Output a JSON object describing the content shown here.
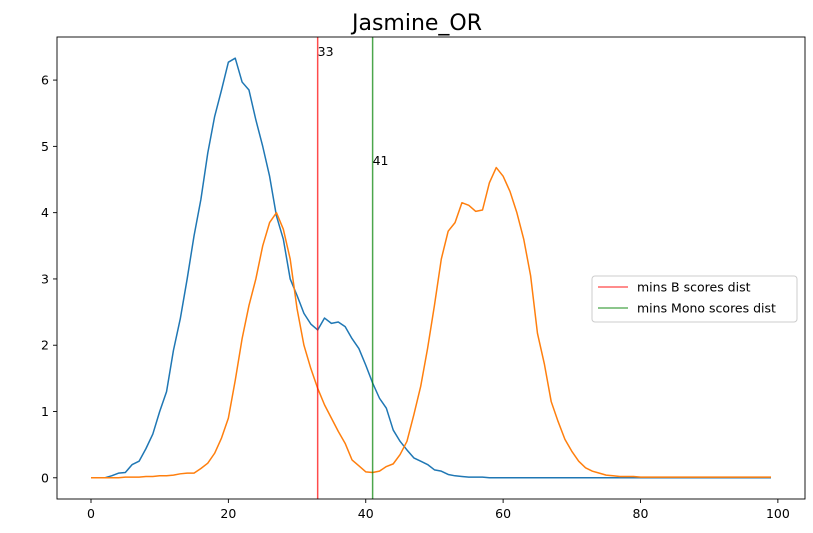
{
  "chart_data": {
    "type": "line",
    "title": "Jasmine_OR",
    "xlabel": "",
    "ylabel": "",
    "xlim": [
      -4.95,
      103.95
    ],
    "ylim": [
      -0.32,
      6.65
    ],
    "xticks": [
      0,
      20,
      40,
      60,
      80,
      100
    ],
    "yticks": [
      0,
      1,
      2,
      3,
      4,
      5,
      6
    ],
    "grid": false,
    "legend_position": "center-right",
    "series": [
      {
        "color": "#1f77b4",
        "x": [
          0,
          1,
          2,
          3,
          4,
          5,
          6,
          7,
          8,
          9,
          10,
          11,
          12,
          13,
          14,
          15,
          16,
          17,
          18,
          19,
          20,
          21,
          22,
          23,
          24,
          25,
          26,
          27,
          28,
          29,
          30,
          31,
          32,
          33,
          34,
          35,
          36,
          37,
          38,
          39,
          40,
          41,
          42,
          43,
          44,
          45,
          46,
          47,
          48,
          49,
          50,
          51,
          52,
          53,
          54,
          55,
          56,
          57,
          58,
          59,
          60,
          61,
          62,
          63,
          64,
          65,
          66,
          67,
          68,
          69,
          70,
          71,
          72,
          73,
          74,
          75,
          76,
          77,
          78,
          79,
          80,
          81,
          82,
          83,
          84,
          85,
          86,
          87,
          88,
          89,
          90,
          91,
          92,
          93,
          94,
          95,
          96,
          97,
          98,
          99
        ],
        "values": [
          0,
          0,
          0,
          0.03,
          0.07,
          0.08,
          0.2,
          0.25,
          0.44,
          0.66,
          1.0,
          1.3,
          1.92,
          2.4,
          3.0,
          3.65,
          4.2,
          4.9,
          5.45,
          5.85,
          6.27,
          6.33,
          5.97,
          5.85,
          5.4,
          5.0,
          4.55,
          3.95,
          3.6,
          3.0,
          2.75,
          2.48,
          2.32,
          2.23,
          2.41,
          2.33,
          2.35,
          2.28,
          2.1,
          1.95,
          1.7,
          1.43,
          1.2,
          1.05,
          0.72,
          0.55,
          0.42,
          0.3,
          0.25,
          0.2,
          0.12,
          0.1,
          0.05,
          0.03,
          0.02,
          0.01,
          0.01,
          0.01,
          0,
          0,
          0,
          0,
          0,
          0,
          0,
          0,
          0,
          0,
          0,
          0,
          0,
          0,
          0,
          0,
          0,
          0,
          0,
          0,
          0,
          0,
          0,
          0,
          0,
          0,
          0,
          0,
          0,
          0,
          0,
          0,
          0,
          0,
          0,
          0,
          0,
          0,
          0,
          0,
          0,
          0
        ]
      },
      {
        "color": "#ff7f0e",
        "x": [
          0,
          1,
          2,
          3,
          4,
          5,
          6,
          7,
          8,
          9,
          10,
          11,
          12,
          13,
          14,
          15,
          16,
          17,
          18,
          19,
          20,
          21,
          22,
          23,
          24,
          25,
          26,
          27,
          28,
          29,
          30,
          31,
          32,
          33,
          34,
          35,
          36,
          37,
          38,
          39,
          40,
          41,
          42,
          43,
          44,
          45,
          46,
          47,
          48,
          49,
          50,
          51,
          52,
          53,
          54,
          55,
          56,
          57,
          58,
          59,
          60,
          61,
          62,
          63,
          64,
          65,
          66,
          67,
          68,
          69,
          70,
          71,
          72,
          73,
          74,
          75,
          76,
          77,
          78,
          79,
          80,
          81,
          82,
          83,
          84,
          85,
          86,
          87,
          88,
          89,
          90,
          91,
          92,
          93,
          94,
          95,
          96,
          97,
          98,
          99
        ],
        "values": [
          0,
          0,
          0,
          0,
          0,
          0.01,
          0.01,
          0.01,
          0.02,
          0.02,
          0.03,
          0.03,
          0.04,
          0.06,
          0.07,
          0.07,
          0.14,
          0.22,
          0.37,
          0.6,
          0.9,
          1.47,
          2.1,
          2.6,
          3.0,
          3.5,
          3.85,
          4.0,
          3.75,
          3.3,
          2.55,
          2.0,
          1.65,
          1.35,
          1.1,
          0.9,
          0.7,
          0.52,
          0.27,
          0.18,
          0.09,
          0.08,
          0.1,
          0.17,
          0.21,
          0.35,
          0.55,
          0.95,
          1.38,
          1.95,
          2.6,
          3.3,
          3.72,
          3.85,
          4.15,
          4.11,
          4.02,
          4.04,
          4.45,
          4.68,
          4.55,
          4.32,
          4.0,
          3.6,
          3.05,
          2.18,
          1.72,
          1.15,
          0.85,
          0.58,
          0.4,
          0.25,
          0.15,
          0.1,
          0.07,
          0.04,
          0.03,
          0.02,
          0.02,
          0.02,
          0.01,
          0.01,
          0.01,
          0.01,
          0.01,
          0.01,
          0.01,
          0.01,
          0.01,
          0.01,
          0.01,
          0.01,
          0.01,
          0.01,
          0.01,
          0.01,
          0.01,
          0.01,
          0.01,
          0.01
        ]
      }
    ],
    "vlines": [
      {
        "x": 33,
        "label": "33",
        "color": "#ff0000",
        "label_y": 6.36,
        "legend": "mins B scores dist"
      },
      {
        "x": 41,
        "label": "41",
        "color": "#008000",
        "label_y": 4.72,
        "legend": "mins Mono scores dist"
      }
    ]
  }
}
